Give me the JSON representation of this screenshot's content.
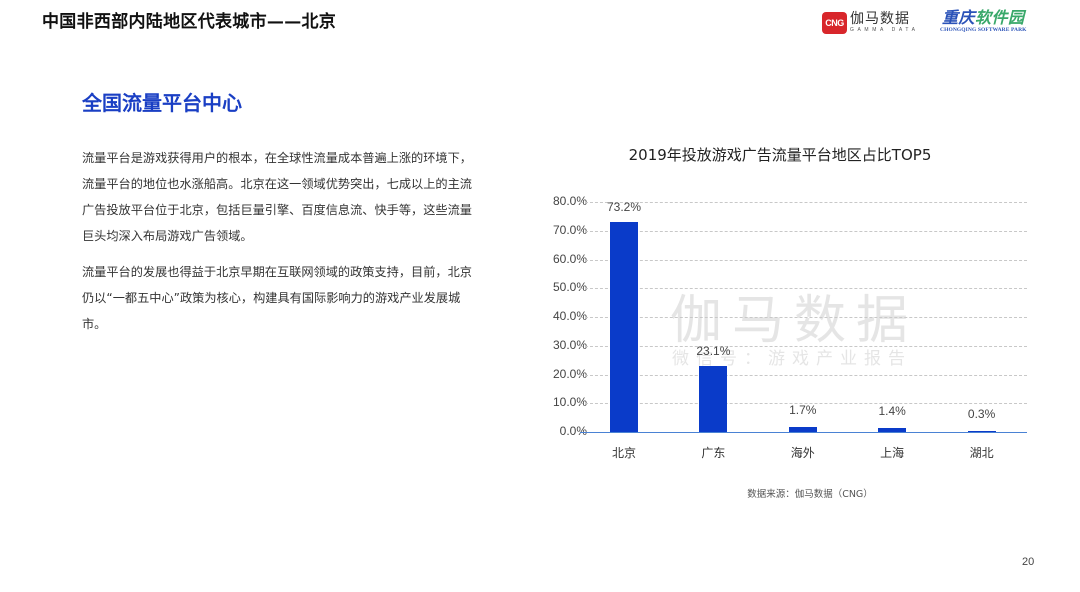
{
  "header": {
    "title": "中国非西部内陆地区代表城市——北京",
    "logos": {
      "cng": {
        "badge": "CNG",
        "name_cn": "伽马数据",
        "name_en": "GAMMA DATA",
        "color": "#d8262b"
      },
      "cqsp": {
        "name_cn_a": "重庆",
        "name_cn_b": "软件园",
        "name_en": "CHONGQING SOFTWARE PARK",
        "color": "#2a52b8"
      }
    }
  },
  "section": {
    "title": "全国流量平台中心",
    "title_color": "#1a3fc4",
    "paragraphs": [
      "流量平台是游戏获得用户的根本，在全球性流量成本普遍上涨的环境下，流量平台的地位也水涨船高。北京在这一领域优势突出，七成以上的主流广告投放平台位于北京，包括巨量引擎、百度信息流、快手等，这些流量巨头均深入布局游戏广告领域。",
      "流量平台的发展也得益于北京早期在互联网领域的政策支持，目前，北京仍以“一都五中心”政策为核心，构建具有国际影响力的游戏产业发展城市。"
    ]
  },
  "chart": {
    "title": "2019年投放游戏广告流量平台地区占比TOP5",
    "watermark_main": "伽马数据",
    "watermark_sub": "微信号：游戏产业报告",
    "source": "数据来源：伽马数据（CNG）",
    "bar_color": "#0a3bc9",
    "y_ticks": [
      "80.0%",
      "70.0%",
      "60.0%",
      "50.0%",
      "40.0%",
      "30.0%",
      "20.0%",
      "10.0%",
      "0.0%"
    ],
    "bars": [
      {
        "category": "北京",
        "value": 73.2,
        "label": "73.2%"
      },
      {
        "category": "广东",
        "value": 23.1,
        "label": "23.1%"
      },
      {
        "category": "海外",
        "value": 1.7,
        "label": "1.7%"
      },
      {
        "category": "上海",
        "value": 1.4,
        "label": "1.4%"
      },
      {
        "category": "湖北",
        "value": 0.3,
        "label": "0.3%"
      }
    ]
  },
  "chart_data": {
    "type": "bar",
    "title": "2019年投放游戏广告流量平台地区占比TOP5",
    "categories": [
      "北京",
      "广东",
      "海外",
      "上海",
      "湖北"
    ],
    "values": [
      73.2,
      23.1,
      1.7,
      1.4,
      0.3
    ],
    "value_labels": [
      "73.2%",
      "23.1%",
      "1.7%",
      "1.4%",
      "0.3%"
    ],
    "xlabel": "",
    "ylabel": "",
    "y_tick_labels": [
      "0.0%",
      "10.0%",
      "20.0%",
      "30.0%",
      "40.0%",
      "50.0%",
      "60.0%",
      "70.0%",
      "80.0%"
    ],
    "ylim": [
      0,
      80
    ],
    "grid": true,
    "grid_style": "dashed horizontal",
    "legend": null,
    "source": "数据来源：伽马数据（CNG）"
  },
  "footer": {
    "page_number": "20"
  }
}
